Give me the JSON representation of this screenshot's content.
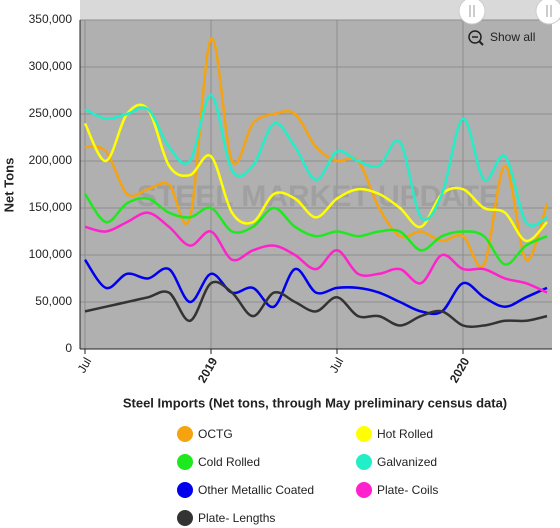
{
  "chart_data": {
    "type": "line",
    "y_label": "Net Tons",
    "legend_title": "Steel Imports (Net tons, through May preliminary census data)",
    "watermark": "STEEL MARKET UPDATE",
    "button": "Show all",
    "x": [
      "2018-07",
      "2018-08",
      "2018-09",
      "2018-10",
      "2018-11",
      "2018-12",
      "2019-01",
      "2019-02",
      "2019-03",
      "2019-04",
      "2019-05",
      "2019-06",
      "2019-07",
      "2019-08",
      "2019-09",
      "2019-10",
      "2019-11",
      "2019-12",
      "2020-01",
      "2020-02",
      "2020-03",
      "2020-04",
      "2020-05"
    ],
    "xlim": [
      "2018-07",
      "2020-05"
    ],
    "xticks": [
      {
        "value": "2018-07",
        "label": "Jul"
      },
      {
        "value": "2019-01",
        "label": "2019"
      },
      {
        "value": "2019-07",
        "label": "Jul"
      },
      {
        "value": "2020-01",
        "label": "2020"
      }
    ],
    "ylim": [
      0,
      350000
    ],
    "yticks": [
      0,
      {
        "value": 50000,
        "label": "50,000"
      },
      {
        "value": 100000,
        "label": "100,000"
      },
      {
        "value": 150000,
        "label": "150,000"
      },
      {
        "value": 200000,
        "label": "200,000"
      },
      {
        "value": 250000,
        "label": "250,000"
      },
      {
        "value": 300000,
        "label": "300,000"
      },
      {
        "value": 350000,
        "label": "350,000"
      }
    ],
    "grid": true,
    "series": [
      {
        "name": "OCTG",
        "color": "#f5a30f",
        "values": [
          215000,
          210000,
          165000,
          170000,
          175000,
          140000,
          330000,
          200000,
          240000,
          250000,
          250000,
          215000,
          200000,
          200000,
          150000,
          120000,
          125000,
          115000,
          120000,
          90000,
          195000,
          95000,
          155000
        ]
      },
      {
        "name": "Hot Rolled",
        "color": "#ffff00",
        "values": [
          240000,
          200000,
          250000,
          255000,
          195000,
          185000,
          205000,
          145000,
          135000,
          165000,
          160000,
          140000,
          160000,
          170000,
          165000,
          150000,
          130000,
          165000,
          170000,
          150000,
          145000,
          115000,
          135000
        ]
      },
      {
        "name": "Cold Rolled",
        "color": "#1ee81e",
        "values": [
          165000,
          135000,
          155000,
          160000,
          145000,
          140000,
          150000,
          125000,
          130000,
          150000,
          130000,
          120000,
          125000,
          120000,
          125000,
          125000,
          105000,
          120000,
          125000,
          120000,
          90000,
          110000,
          120000
        ]
      },
      {
        "name": "Galvanized",
        "color": "#22eec8",
        "values": [
          255000,
          245000,
          250000,
          255000,
          215000,
          200000,
          270000,
          190000,
          195000,
          240000,
          215000,
          180000,
          210000,
          200000,
          195000,
          220000,
          140000,
          165000,
          245000,
          180000,
          205000,
          135000,
          140000
        ]
      },
      {
        "name": "Other Metallic Coated",
        "color": "#0000ee",
        "values": [
          95000,
          65000,
          80000,
          75000,
          85000,
          50000,
          80000,
          60000,
          65000,
          45000,
          85000,
          60000,
          65000,
          65000,
          60000,
          50000,
          40000,
          40000,
          70000,
          55000,
          45000,
          55000,
          65000
        ]
      },
      {
        "name": "Plate- Coils",
        "color": "#ff22cc",
        "values": [
          130000,
          125000,
          135000,
          145000,
          130000,
          110000,
          125000,
          95000,
          105000,
          110000,
          100000,
          85000,
          105000,
          80000,
          80000,
          85000,
          70000,
          100000,
          85000,
          85000,
          75000,
          70000,
          60000
        ]
      },
      {
        "name": "Plate- Lengths",
        "color": "#333333",
        "values": [
          40000,
          45000,
          50000,
          55000,
          60000,
          30000,
          70000,
          60000,
          35000,
          60000,
          50000,
          40000,
          55000,
          35000,
          35000,
          25000,
          35000,
          40000,
          25000,
          25000,
          30000,
          30000,
          35000
        ]
      }
    ]
  }
}
